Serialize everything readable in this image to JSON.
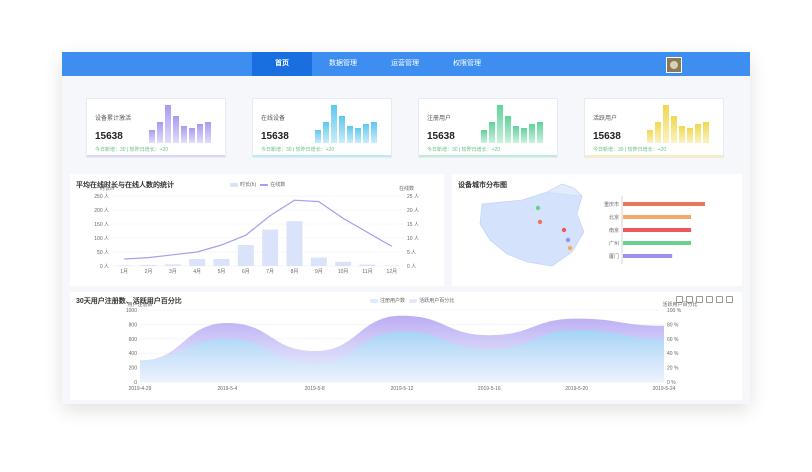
{
  "nav": {
    "items": [
      {
        "label": "首页",
        "active": true
      },
      {
        "label": "数据管理",
        "active": false
      },
      {
        "label": "运营管理",
        "active": false
      },
      {
        "label": "权限管理",
        "active": false
      }
    ]
  },
  "cards": [
    {
      "title": "设备累计激活",
      "value": "15638",
      "sub": "今日新增：30 | 较昨日增长：+20",
      "color": "#a79bf0",
      "bars": [
        0.35,
        0.55,
        1.0,
        0.7,
        0.45,
        0.4,
        0.5,
        0.55
      ]
    },
    {
      "title": "在线设备",
      "value": "15638",
      "sub": "今日新增：30 | 较昨日增长：+20",
      "color": "#5fc8ee",
      "bars": [
        0.35,
        0.55,
        1.0,
        0.7,
        0.45,
        0.4,
        0.5,
        0.55
      ]
    },
    {
      "title": "注册用户",
      "value": "15638",
      "sub": "今日新增：30 | 较昨日增长：+20",
      "color": "#5fd39a",
      "bars": [
        0.35,
        0.55,
        1.0,
        0.7,
        0.45,
        0.4,
        0.5,
        0.55
      ]
    },
    {
      "title": "活跃用户",
      "value": "15638",
      "sub": "今日新增：30 | 较昨日增长：+20",
      "color": "#f0d84e",
      "bars": [
        0.35,
        0.55,
        1.0,
        0.7,
        0.45,
        0.4,
        0.5,
        0.55
      ]
    }
  ],
  "chart1": {
    "title": "平均在线时长与在线人数的统计",
    "legend": [
      "时长(h)",
      "在线数"
    ],
    "y_left_label": "时长/h",
    "y_right_label": "在线数",
    "left_ticks": [
      "250 人",
      "200 人",
      "150 人",
      "100 人",
      "50 人",
      "0 人"
    ],
    "right_ticks": [
      "25 人",
      "20 人",
      "15 人",
      "10 人",
      "5 人",
      "0 人"
    ],
    "colors": {
      "bar": "#dbe3fb",
      "line": "#a89df0"
    }
  },
  "chart2": {
    "title": "设备城市分布图",
    "bars": [
      {
        "label": "重庆市",
        "color": "#e8775a",
        "value": 1.0
      },
      {
        "label": "北京",
        "color": "#f2a96b",
        "value": 0.83
      },
      {
        "label": "南京",
        "color": "#ea5a5a",
        "value": 0.83
      },
      {
        "label": "广州",
        "color": "#6bd08e",
        "value": 0.83
      },
      {
        "label": "厦门",
        "color": "#9b8ff0",
        "value": 0.6
      }
    ],
    "map_color": "#d4e3fb"
  },
  "chart3": {
    "title": "30天用户注册数、活跃用户百分比",
    "legend": [
      "注册用户数",
      "活跃用户百分比"
    ],
    "y_left_label": "用户注册数",
    "y_right_label": "活跃用户百分比",
    "left_ticks": [
      "1000",
      "800",
      "600",
      "400",
      "200",
      "0"
    ],
    "right_ticks": [
      "100 %",
      "80 %",
      "60 %",
      "40 %",
      "20 %",
      "0 %"
    ],
    "x_ticks": [
      "2019-4-29",
      "2019-5-4",
      "2019-5-8",
      "2019-5-12",
      "2019-5-16",
      "2019-5-20",
      "2019-5-24"
    ],
    "toolbar_icons": [
      "data-view-icon",
      "line-icon",
      "bar-icon",
      "stack-icon",
      "restore-icon",
      "save-icon"
    ]
  },
  "chart_data": [
    {
      "type": "bar",
      "title": "平均在线时长与在线人数的统计",
      "categories": [
        "1月",
        "2月",
        "3月",
        "4月",
        "5月",
        "6月",
        "7月",
        "8月",
        "9月",
        "10月",
        "11月",
        "12月"
      ],
      "ylim": [
        0,
        250
      ],
      "y2lim": [
        0,
        25
      ],
      "series": [
        {
          "name": "时长(h)",
          "type": "bar",
          "values": [
            2,
            4,
            6,
            25,
            25,
            75,
            130,
            160,
            30,
            15,
            5,
            2
          ]
        },
        {
          "name": "在线数",
          "type": "line",
          "values": [
            2.5,
            3,
            4,
            5,
            7.5,
            11,
            18,
            23.5,
            23,
            17,
            12,
            7
          ]
        }
      ]
    },
    {
      "type": "bar",
      "title": "设备城市分布图",
      "categories": [
        "重庆市",
        "北京",
        "南京",
        "广州",
        "厦门"
      ],
      "values": [
        100,
        83,
        83,
        83,
        60
      ]
    },
    {
      "type": "area",
      "title": "30天用户注册数、活跃用户百分比",
      "x": [
        "2019-4-29",
        "2019-5-4",
        "2019-5-8",
        "2019-5-12",
        "2019-5-16",
        "2019-5-20",
        "2019-5-24"
      ],
      "ylim": [
        0,
        1000
      ],
      "y2lim": [
        0,
        100
      ],
      "series": [
        {
          "name": "注册用户数",
          "values": [
            300,
            820,
            430,
            920,
            650,
            880,
            780
          ]
        },
        {
          "name": "活跃用户百分比",
          "values": [
            30,
            60,
            25,
            70,
            45,
            72,
            60
          ]
        }
      ]
    }
  ]
}
